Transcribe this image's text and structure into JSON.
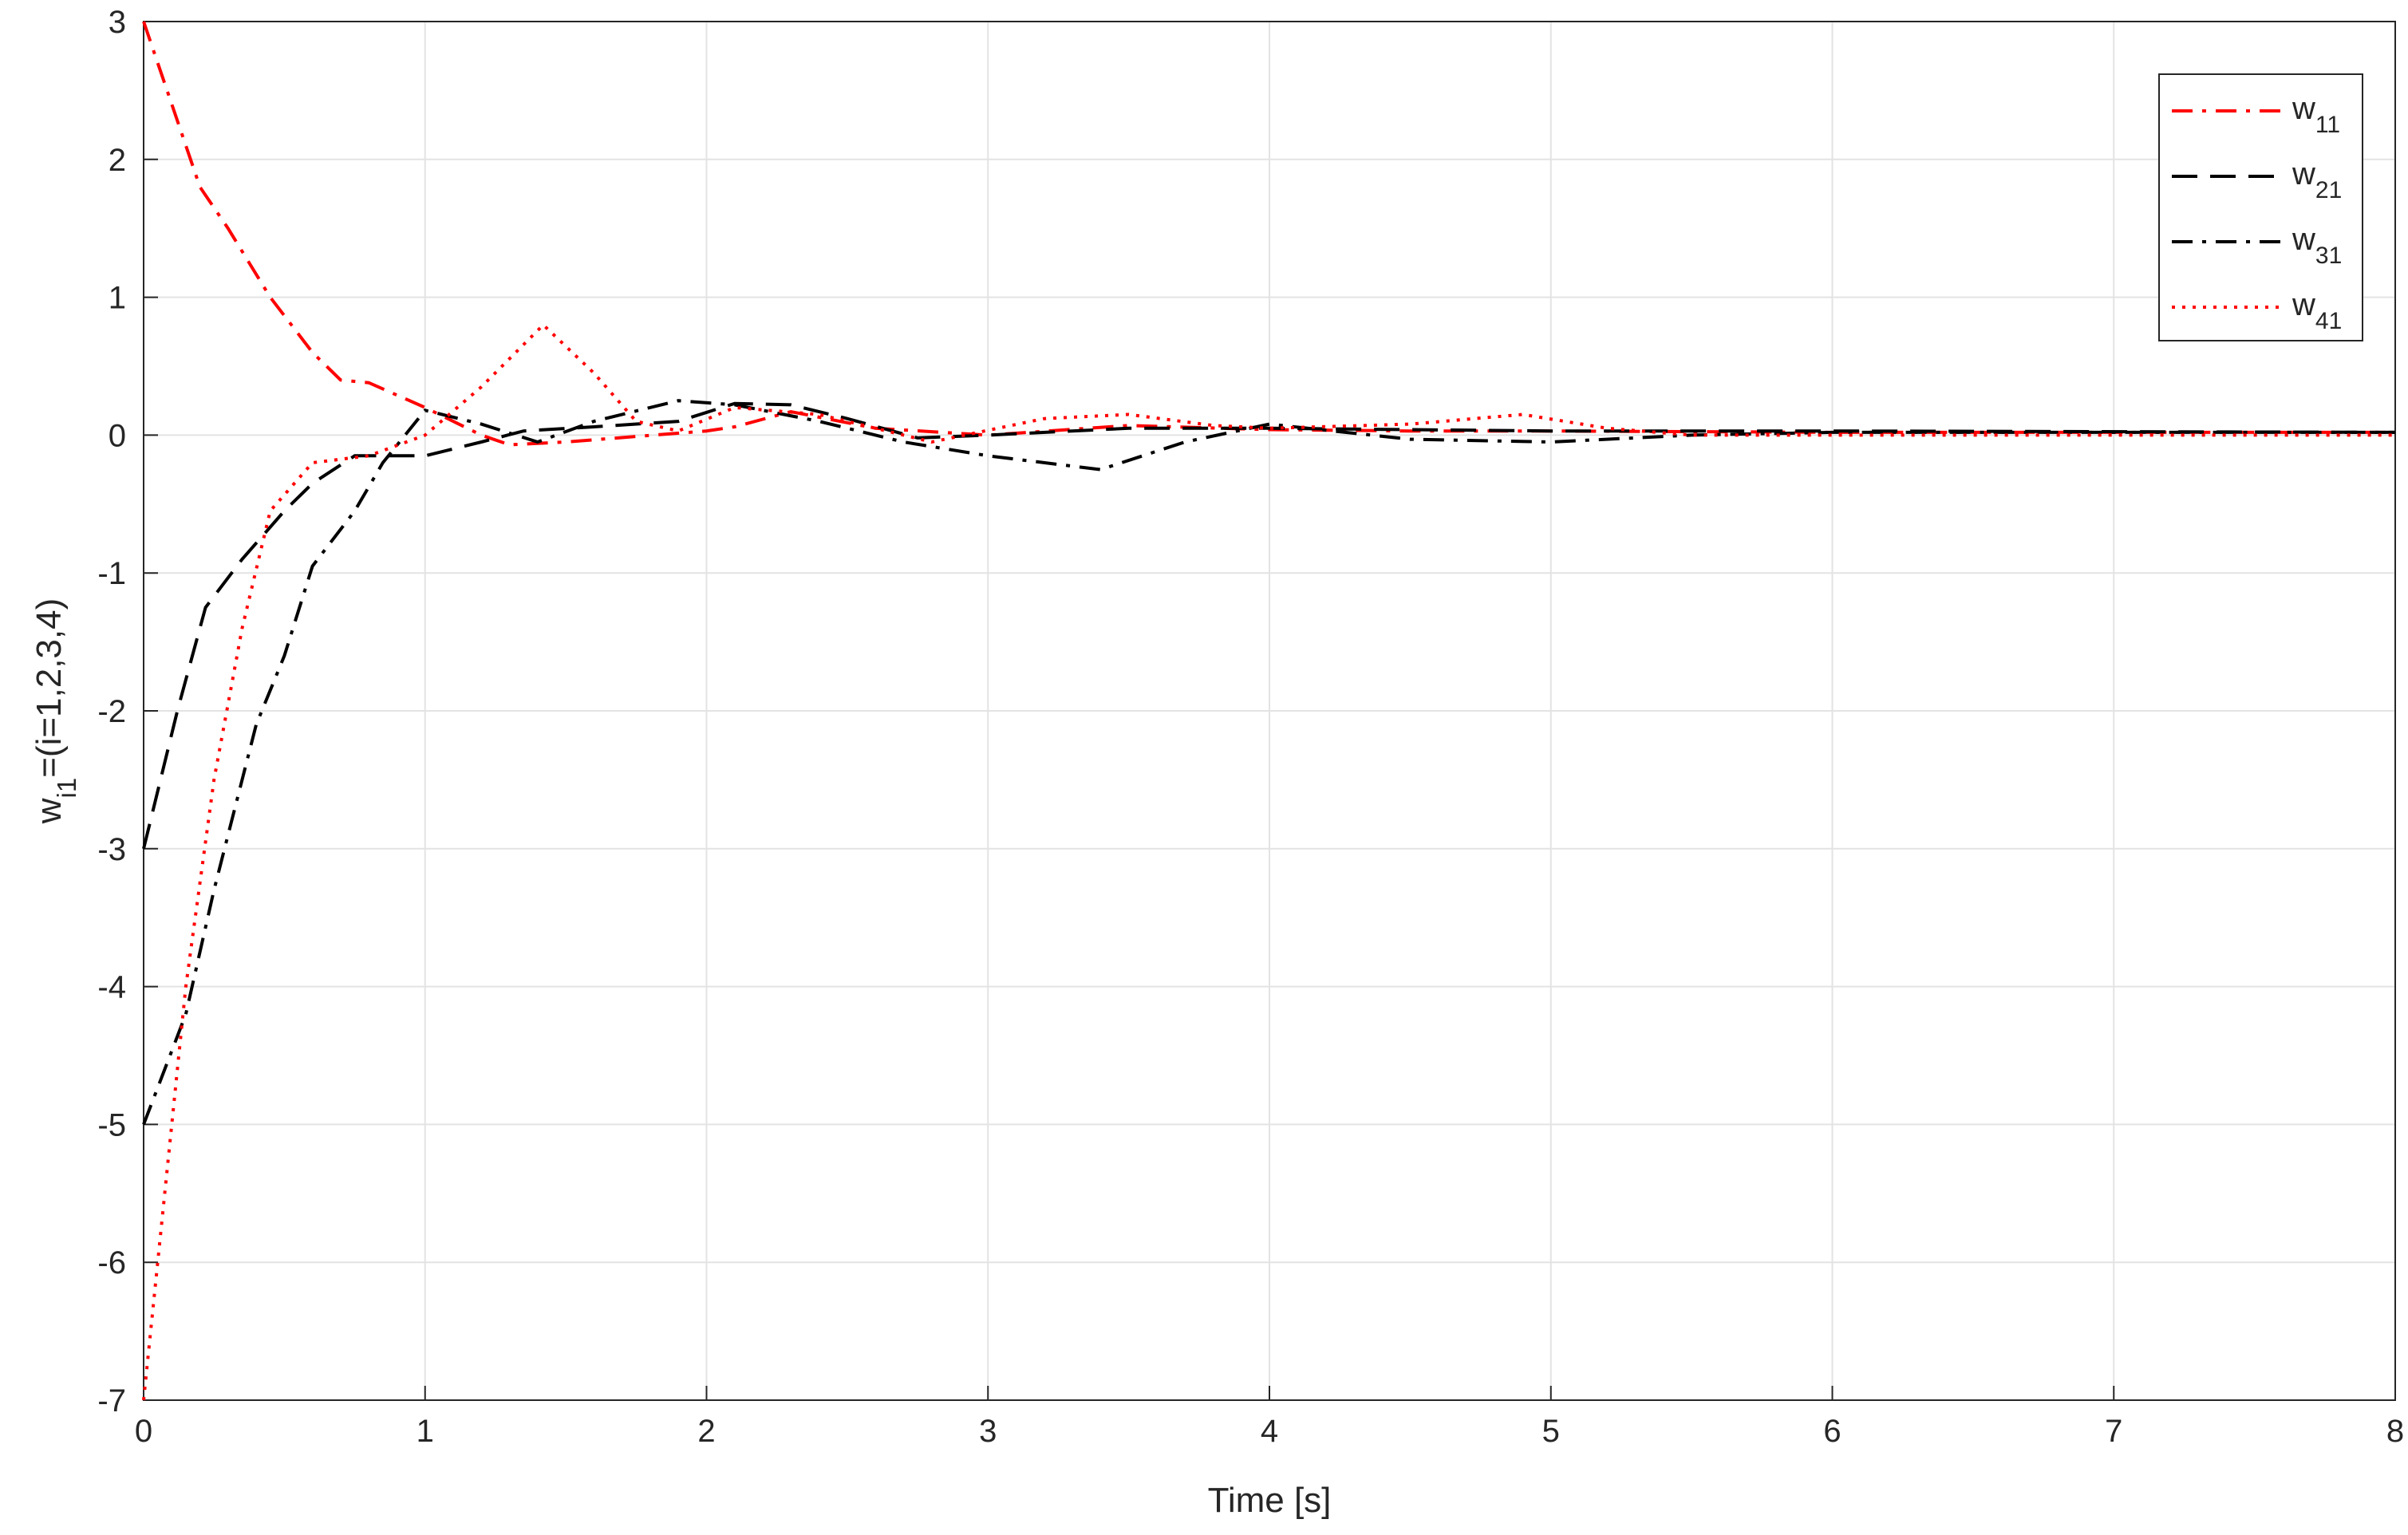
{
  "chart_data": {
    "type": "line",
    "xlabel": "Time [s]",
    "ylabel": "wi1=(i=1,2,3,4)",
    "xlim": [
      0,
      8
    ],
    "ylim": [
      -7,
      3
    ],
    "xticks": [
      0,
      1,
      2,
      3,
      4,
      5,
      6,
      7,
      8
    ],
    "yticks": [
      -7,
      -6,
      -5,
      -4,
      -3,
      -2,
      -1,
      0,
      1,
      2,
      3
    ],
    "grid": true,
    "legend": "upper right",
    "series": [
      {
        "name": "w11",
        "color": "#ff0000",
        "linestyle": "dashdot",
        "x": [
          0,
          0.1,
          0.2,
          0.3,
          0.45,
          0.6,
          0.7,
          0.8,
          1.0,
          1.2,
          1.3,
          1.5,
          2.0,
          2.1,
          2.3,
          2.6,
          3.0,
          3.5,
          4.0,
          4.5,
          5,
          6,
          8
        ],
        "values": [
          3,
          2.4,
          1.8,
          1.5,
          1.0,
          0.6,
          0.4,
          0.38,
          0.2,
          0.0,
          -0.07,
          -0.05,
          0.03,
          0.06,
          0.17,
          0.05,
          0.0,
          0.07,
          0.04,
          0.03,
          0.03,
          0.02,
          0.02
        ]
      },
      {
        "name": "w21",
        "color": "#000000",
        "linestyle": "dashed",
        "x": [
          0,
          0.12,
          0.22,
          0.35,
          0.5,
          0.6,
          0.75,
          0.9,
          1.0,
          1.2,
          1.35,
          1.6,
          1.9,
          2.1,
          2.3,
          2.5,
          2.75,
          3.0,
          3.5,
          4,
          5,
          6,
          8
        ],
        "values": [
          -3,
          -2.0,
          -1.25,
          -0.9,
          -0.55,
          -0.35,
          -0.15,
          -0.15,
          -0.15,
          -0.05,
          0.03,
          0.06,
          0.1,
          0.23,
          0.22,
          0.12,
          -0.02,
          0.0,
          0.05,
          0.05,
          0.03,
          0.03,
          0.02
        ]
      },
      {
        "name": "w31",
        "color": "#000000",
        "linestyle": "dashdot",
        "x": [
          0,
          0.15,
          0.25,
          0.4,
          0.5,
          0.6,
          0.75,
          0.85,
          1.0,
          1.2,
          1.4,
          1.6,
          1.8,
          1.9,
          2.1,
          2.4,
          2.7,
          3.0,
          3.4,
          3.7,
          4.0,
          4.5,
          5,
          5.5,
          6,
          8
        ],
        "values": [
          -5,
          -4.2,
          -3.3,
          -2.1,
          -1.6,
          -0.95,
          -0.55,
          -0.2,
          0.18,
          0.08,
          -0.05,
          0.1,
          0.2,
          0.25,
          0.22,
          0.1,
          -0.05,
          -0.15,
          -0.25,
          -0.05,
          0.08,
          -0.03,
          -0.05,
          0.0,
          0.02,
          0.02
        ]
      },
      {
        "name": "w41",
        "color": "#ff0000",
        "linestyle": "dotted",
        "x": [
          0,
          0.07,
          0.15,
          0.25,
          0.35,
          0.45,
          0.6,
          0.8,
          1.0,
          1.2,
          1.42,
          1.6,
          1.75,
          1.9,
          2.1,
          2.4,
          2.8,
          3.2,
          3.5,
          3.8,
          4.0,
          4.5,
          4.9,
          5.2,
          5.5,
          6,
          8
        ],
        "values": [
          -7,
          -5.6,
          -4.0,
          -2.5,
          -1.4,
          -0.55,
          -0.2,
          -0.15,
          0.0,
          0.35,
          0.8,
          0.45,
          0.1,
          0.03,
          0.2,
          0.15,
          -0.05,
          0.12,
          0.15,
          0.07,
          0.05,
          0.08,
          0.15,
          0.05,
          0.0,
          0.0,
          0.0
        ]
      }
    ]
  }
}
